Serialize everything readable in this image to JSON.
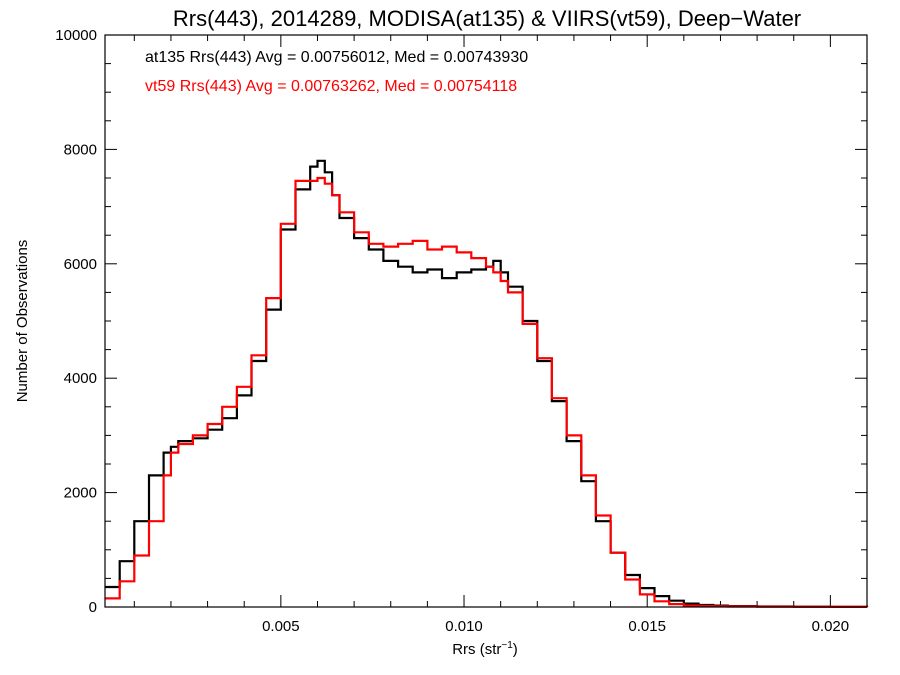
{
  "chart_data": {
    "type": "line",
    "title": "Rrs(443), 2014289, MODISA(at135) & VIIRS(vt59), Deep−Water",
    "xlabel_main": "Rrs (str",
    "xlabel_sup": "−1",
    "xlabel_end": ")",
    "ylabel": "Number of Observations",
    "xlim": [
      0.0002,
      0.021
    ],
    "ylim": [
      0,
      10000
    ],
    "x_ticks": [
      0.005,
      0.01,
      0.015,
      0.02
    ],
    "x_tick_labels": [
      "0.005",
      "0.010",
      "0.015",
      "0.020"
    ],
    "y_ticks": [
      0,
      2000,
      4000,
      6000,
      8000,
      10000
    ],
    "y_tick_labels": [
      "0",
      "2000",
      "4000",
      "6000",
      "8000",
      "10000"
    ],
    "annotations": [
      {
        "text": "at135 Rrs(443) Avg = 0.00756012, Med = 0.00743930",
        "color": "#000000"
      },
      {
        "text": "vt59 Rrs(443) Avg = 0.00763262, Med = 0.00754118",
        "color": "#ff0000"
      }
    ],
    "grid": false,
    "series": [
      {
        "color": "#000000",
        "style": "step",
        "x": [
          0.0002,
          0.0006,
          0.001,
          0.0014,
          0.0018,
          0.002,
          0.0022,
          0.0026,
          0.003,
          0.0034,
          0.0038,
          0.0042,
          0.0046,
          0.005,
          0.0054,
          0.0058,
          0.006,
          0.0062,
          0.0064,
          0.0066,
          0.007,
          0.0074,
          0.0078,
          0.0082,
          0.0086,
          0.009,
          0.0094,
          0.0098,
          0.0102,
          0.0106,
          0.0108,
          0.011,
          0.0112,
          0.0116,
          0.012,
          0.0124,
          0.0128,
          0.0132,
          0.0136,
          0.014,
          0.0144,
          0.0148,
          0.0152,
          0.0156,
          0.016,
          0.0164,
          0.0168,
          0.0172,
          0.018,
          0.019,
          0.02,
          0.021
        ],
        "y": [
          350,
          800,
          1500,
          2300,
          2700,
          2800,
          2900,
          2950,
          3100,
          3300,
          3700,
          4300,
          5200,
          6600,
          7300,
          7700,
          7800,
          7600,
          7200,
          6800,
          6450,
          6250,
          6050,
          5950,
          5850,
          5900,
          5750,
          5850,
          5900,
          5950,
          6050,
          5850,
          5600,
          5000,
          4300,
          3600,
          2900,
          2200,
          1500,
          950,
          560,
          330,
          190,
          110,
          60,
          35,
          25,
          15,
          8,
          5,
          3,
          0
        ]
      },
      {
        "color": "#ff0000",
        "style": "step",
        "x": [
          0.0002,
          0.0006,
          0.001,
          0.0014,
          0.0018,
          0.002,
          0.0022,
          0.0026,
          0.003,
          0.0034,
          0.0038,
          0.0042,
          0.0046,
          0.005,
          0.0054,
          0.0058,
          0.006,
          0.0062,
          0.0064,
          0.0066,
          0.007,
          0.0074,
          0.0078,
          0.0082,
          0.0086,
          0.009,
          0.0094,
          0.0098,
          0.0102,
          0.0106,
          0.0108,
          0.011,
          0.0112,
          0.0116,
          0.012,
          0.0124,
          0.0128,
          0.0132,
          0.0136,
          0.014,
          0.0144,
          0.0148,
          0.0152,
          0.0156,
          0.016,
          0.0164,
          0.0168,
          0.0172,
          0.018,
          0.019,
          0.02,
          0.021
        ],
        "y": [
          150,
          450,
          900,
          1500,
          2300,
          2700,
          2850,
          3000,
          3200,
          3500,
          3850,
          4400,
          5400,
          6700,
          7450,
          7450,
          7500,
          7400,
          7200,
          6900,
          6550,
          6350,
          6300,
          6350,
          6400,
          6250,
          6300,
          6200,
          6100,
          5950,
          5850,
          5700,
          5500,
          4950,
          4350,
          3650,
          3000,
          2300,
          1600,
          950,
          480,
          220,
          100,
          50,
          25,
          15,
          10,
          8,
          5,
          3,
          2,
          0
        ]
      }
    ]
  }
}
